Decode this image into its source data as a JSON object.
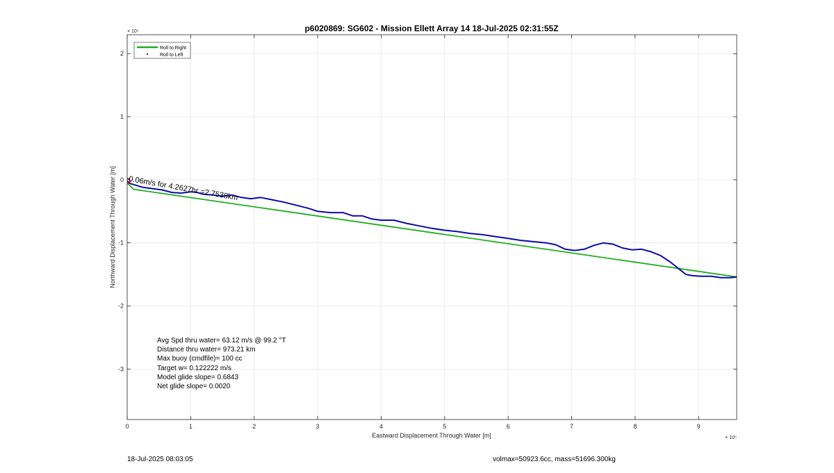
{
  "chart_data": {
    "type": "line",
    "title": "p6020869: SG602 - Mission Ellett Array 14 18-Jul-2025 02:31:55Z",
    "xlabel": "Eastward Displacement Through Water [m]",
    "ylabel": "Northward Displacement Through Water [m]",
    "x_exponent": "× 10⁵",
    "y_exponent": "× 10⁵",
    "xlim": [
      0,
      9.6
    ],
    "ylim": [
      -3.8,
      2.3
    ],
    "xticks": [
      "0",
      "1",
      "2",
      "3",
      "4",
      "5",
      "6",
      "7",
      "8",
      "9"
    ],
    "yticks": [
      "2",
      "1",
      "0",
      "-1",
      "-2",
      "-3"
    ],
    "grid": true,
    "legend_placement": "top-left",
    "legend": [
      {
        "label": "Roll to Right",
        "color": "#1cae1c",
        "style": "line"
      },
      {
        "label": "Roll to Left",
        "color": "#cc0000",
        "style": "dot"
      }
    ],
    "series": [
      {
        "name": "Roll to Right",
        "color": "#1cae1c",
        "x": [
          0.0,
          0.1,
          9.6
        ],
        "y": [
          -0.05,
          -0.15,
          -1.54
        ]
      },
      {
        "color": "#0a0aaa",
        "x": [
          0.0,
          0.05,
          0.15,
          0.25,
          0.4,
          0.55,
          0.7,
          0.85,
          1.0,
          1.1,
          1.2,
          1.35,
          1.5,
          1.65,
          1.8,
          1.95,
          2.1,
          2.25,
          2.45,
          2.65,
          2.85,
          3.0,
          3.2,
          3.4,
          3.55,
          3.7,
          3.85,
          4.0,
          4.2,
          4.4,
          4.6,
          4.8,
          5.0,
          5.2,
          5.4,
          5.6,
          5.8,
          6.0,
          6.2,
          6.4,
          6.6,
          6.75,
          6.9,
          7.05,
          7.2,
          7.35,
          7.5,
          7.65,
          7.8,
          7.95,
          8.1,
          8.25,
          8.4,
          8.55,
          8.7,
          8.8,
          8.9,
          9.05,
          9.2,
          9.35,
          9.5,
          9.6
        ],
        "y": [
          -0.02,
          -0.06,
          -0.09,
          -0.12,
          -0.14,
          -0.16,
          -0.2,
          -0.21,
          -0.19,
          -0.2,
          -0.23,
          -0.24,
          -0.26,
          -0.24,
          -0.28,
          -0.3,
          -0.28,
          -0.31,
          -0.35,
          -0.4,
          -0.45,
          -0.5,
          -0.52,
          -0.52,
          -0.57,
          -0.57,
          -0.62,
          -0.64,
          -0.64,
          -0.69,
          -0.73,
          -0.77,
          -0.8,
          -0.82,
          -0.85,
          -0.87,
          -0.9,
          -0.93,
          -0.96,
          -0.98,
          -1.0,
          -1.03,
          -1.1,
          -1.12,
          -1.1,
          -1.04,
          -1.0,
          -1.02,
          -1.08,
          -1.11,
          -1.1,
          -1.14,
          -1.2,
          -1.3,
          -1.42,
          -1.5,
          -1.52,
          -1.53,
          -1.53,
          -1.55,
          -1.55,
          -1.54
        ]
      }
    ],
    "annotations": [
      {
        "text": "0.06m/s for 4.2627hr =2.7538km",
        "x": 0.02,
        "y": -0.02,
        "angle_deg": 10
      }
    ],
    "start_marker_color": "#cc0000"
  },
  "stats": {
    "avg_speed": "Avg Spd thru water= 63.12 m/s @  99.2 °T",
    "distance": "Distance thru water= 973.21 km",
    "max_buoy": "Max buoy (cmdfile)= 100 cc",
    "target_w": "Target w= 0.122222 m/s",
    "model_glide": "Model glide slope= 0.6843",
    "net_glide": "Net glide slope= 0.0020"
  },
  "footer": {
    "timestamp": "18-Jul-2025 08:03:05",
    "vol_mass": "volmax=50923.6cc, mass=51696.300kg"
  }
}
